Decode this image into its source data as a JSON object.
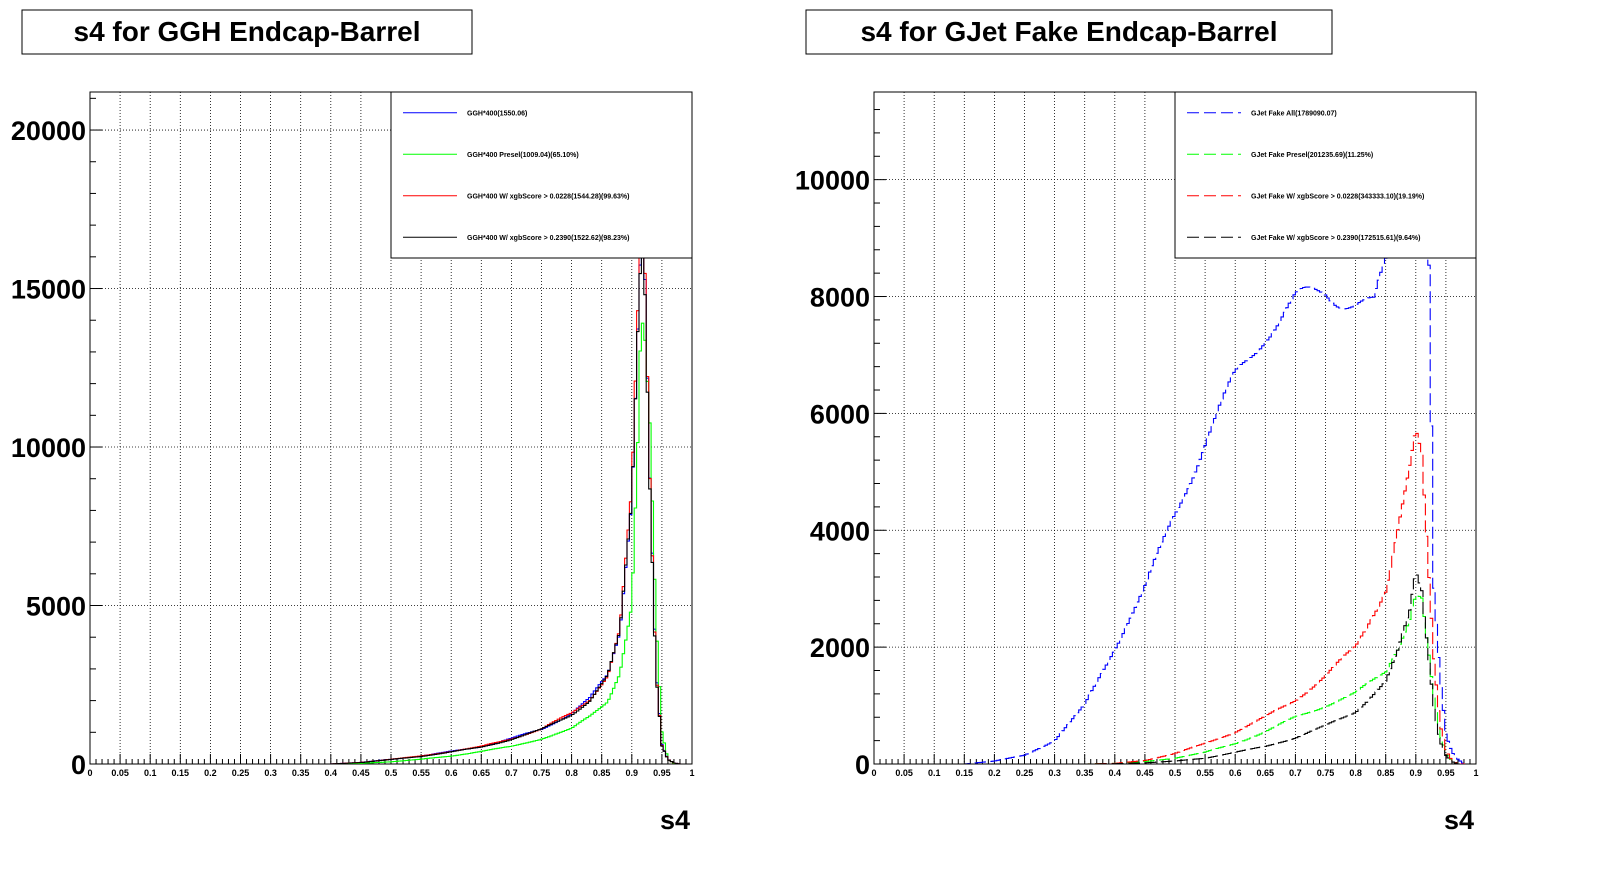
{
  "chart_data": [
    {
      "type": "line",
      "title": "s4 for GGH Endcap-Barrel",
      "xlabel": "s4",
      "ylabel": "",
      "xlim": [
        0,
        1
      ],
      "ylim": [
        0,
        21200
      ],
      "grid": true,
      "legend_position": "top-right",
      "x_ticks": [
        "0",
        "0.05",
        "0.1",
        "0.15",
        "0.2",
        "0.25",
        "0.3",
        "0.35",
        "0.4",
        "0.45",
        "0.5",
        "0.55",
        "0.6",
        "0.65",
        "0.7",
        "0.75",
        "0.8",
        "0.85",
        "0.9",
        "0.95",
        "1"
      ],
      "x_tick_values": [
        0,
        0.05,
        0.1,
        0.15,
        0.2,
        0.25,
        0.3,
        0.35,
        0.4,
        0.45,
        0.5,
        0.55,
        0.6,
        0.65,
        0.7,
        0.75,
        0.8,
        0.85,
        0.9,
        0.95,
        1
      ],
      "y_ticks": [
        "0",
        "5000",
        "10000",
        "15000",
        "20000"
      ],
      "y_tick_values": [
        0,
        5000,
        10000,
        15000,
        20000
      ],
      "series": [
        {
          "name": "GGH*400(1550.06)",
          "color": "#0000ff",
          "dash": "solid",
          "x": [
            0.4,
            0.45,
            0.5,
            0.55,
            0.6,
            0.65,
            0.7,
            0.75,
            0.8,
            0.83,
            0.86,
            0.88,
            0.9,
            0.91,
            0.915,
            0.92,
            0.93,
            0.94,
            0.95,
            0.96,
            0.97,
            0.98
          ],
          "y": [
            0,
            50,
            150,
            250,
            400,
            550,
            800,
            1100,
            1600,
            2050,
            2800,
            4200,
            8500,
            14000,
            16500,
            17000,
            9000,
            3000,
            600,
            150,
            30,
            0
          ]
        },
        {
          "name": "GGH*400 Presel(1009.04)(65.10%)",
          "color": "#00ff00",
          "dash": "solid",
          "x": [
            0.4,
            0.45,
            0.5,
            0.55,
            0.6,
            0.65,
            0.7,
            0.75,
            0.8,
            0.83,
            0.86,
            0.88,
            0.9,
            0.91,
            0.915,
            0.92,
            0.93,
            0.94,
            0.95,
            0.96,
            0.97,
            0.98
          ],
          "y": [
            0,
            20,
            70,
            150,
            250,
            400,
            550,
            800,
            1100,
            1500,
            2000,
            2900,
            5000,
            10000,
            13500,
            13700,
            10500,
            4500,
            1000,
            150,
            20,
            0
          ]
        },
        {
          "name": "GGH*400 W/ xgbScore > 0.0228(1544.28)(99.63%)",
          "color": "#ff0000",
          "dash": "solid",
          "x": [
            0.4,
            0.45,
            0.5,
            0.55,
            0.6,
            0.65,
            0.7,
            0.75,
            0.8,
            0.83,
            0.86,
            0.88,
            0.9,
            0.91,
            0.915,
            0.92,
            0.93,
            0.94,
            0.95,
            0.96,
            0.97,
            0.98
          ],
          "y": [
            0,
            50,
            150,
            250,
            400,
            550,
            800,
            1100,
            1600,
            2050,
            2800,
            4200,
            8500,
            14000,
            16400,
            16900,
            9000,
            3000,
            600,
            150,
            30,
            0
          ]
        },
        {
          "name": "GGH*400 W/ xgbScore > 0.2390(1522.62)(98.23%)",
          "color": "#000000",
          "dash": "solid",
          "x": [
            0.4,
            0.45,
            0.5,
            0.55,
            0.6,
            0.65,
            0.7,
            0.75,
            0.8,
            0.83,
            0.86,
            0.88,
            0.9,
            0.91,
            0.915,
            0.92,
            0.93,
            0.94,
            0.95,
            0.96,
            0.97,
            0.98
          ],
          "y": [
            0,
            45,
            140,
            240,
            380,
            530,
            780,
            1080,
            1570,
            2000,
            2750,
            4100,
            8300,
            13800,
            16200,
            16700,
            8900,
            2950,
            580,
            140,
            30,
            0
          ]
        }
      ]
    },
    {
      "type": "line",
      "title": "s4 for GJet Fake Endcap-Barrel",
      "xlabel": "s4",
      "ylabel": "",
      "xlim": [
        0,
        1
      ],
      "ylim": [
        0,
        11500
      ],
      "grid": true,
      "legend_position": "top-right",
      "x_ticks": [
        "0",
        "0.05",
        "0.1",
        "0.15",
        "0.2",
        "0.25",
        "0.3",
        "0.35",
        "0.4",
        "0.45",
        "0.5",
        "0.55",
        "0.6",
        "0.65",
        "0.7",
        "0.75",
        "0.8",
        "0.85",
        "0.9",
        "0.95",
        "1"
      ],
      "x_tick_values": [
        0,
        0.05,
        0.1,
        0.15,
        0.2,
        0.25,
        0.3,
        0.35,
        0.4,
        0.45,
        0.5,
        0.55,
        0.6,
        0.65,
        0.7,
        0.75,
        0.8,
        0.85,
        0.9,
        0.95,
        1
      ],
      "y_ticks": [
        "0",
        "2000",
        "4000",
        "6000",
        "8000",
        "10000"
      ],
      "y_tick_values": [
        0,
        2000,
        4000,
        6000,
        8000,
        10000
      ],
      "series": [
        {
          "name": "GJet Fake All(1789090.07)",
          "color": "#0000ff",
          "dash": "dashed",
          "x": [
            0.15,
            0.2,
            0.25,
            0.3,
            0.35,
            0.4,
            0.45,
            0.5,
            0.55,
            0.6,
            0.65,
            0.7,
            0.75,
            0.8,
            0.83,
            0.85,
            0.87,
            0.9,
            0.91,
            0.92,
            0.93,
            0.94,
            0.95,
            0.96,
            0.97,
            0.98
          ],
          "y": [
            0,
            50,
            150,
            400,
            1000,
            2000,
            3000,
            4300,
            5500,
            6600,
            7400,
            7900,
            8100,
            7900,
            7800,
            8500,
            10500,
            13000,
            12500,
            10000,
            3000,
            1500,
            500,
            200,
            80,
            0
          ]
        },
        {
          "name": "GJet Fake Presel(201235.69)(11.25%)",
          "color": "#00ff00",
          "dash": "dashed",
          "x": [
            0.35,
            0.4,
            0.45,
            0.5,
            0.55,
            0.6,
            0.65,
            0.7,
            0.75,
            0.8,
            0.85,
            0.87,
            0.89,
            0.9,
            0.91,
            0.92,
            0.93,
            0.94,
            0.95,
            0.96,
            0.97
          ],
          "y": [
            0,
            10,
            40,
            100,
            200,
            350,
            550,
            800,
            1000,
            1200,
            1600,
            2000,
            2500,
            2900,
            2800,
            2000,
            1100,
            500,
            200,
            50,
            0
          ]
        },
        {
          "name": "GJet Fake W/ xgbScore > 0.0228(343333.10)(19.19%)",
          "color": "#ff0000",
          "dash": "dashed",
          "x": [
            0.35,
            0.4,
            0.45,
            0.5,
            0.55,
            0.6,
            0.65,
            0.7,
            0.75,
            0.8,
            0.85,
            0.87,
            0.89,
            0.9,
            0.91,
            0.92,
            0.93,
            0.94,
            0.95,
            0.96,
            0.97
          ],
          "y": [
            0,
            10,
            60,
            180,
            350,
            550,
            800,
            1100,
            1500,
            2000,
            3000,
            4000,
            5000,
            5600,
            5200,
            3500,
            1800,
            700,
            250,
            60,
            0
          ]
        },
        {
          "name": "GJet Fake W/ xgbScore > 0.2390(172515.61)(9.64%)",
          "color": "#000000",
          "dash": "dashed",
          "x": [
            0.35,
            0.4,
            0.45,
            0.5,
            0.55,
            0.6,
            0.65,
            0.7,
            0.75,
            0.8,
            0.85,
            0.87,
            0.89,
            0.9,
            0.91,
            0.92,
            0.93,
            0.94,
            0.95,
            0.96,
            0.97
          ],
          "y": [
            0,
            5,
            20,
            50,
            100,
            200,
            300,
            450,
            650,
            900,
            1400,
            1900,
            2600,
            3300,
            3000,
            2000,
            1000,
            400,
            150,
            40,
            0
          ]
        }
      ]
    }
  ]
}
